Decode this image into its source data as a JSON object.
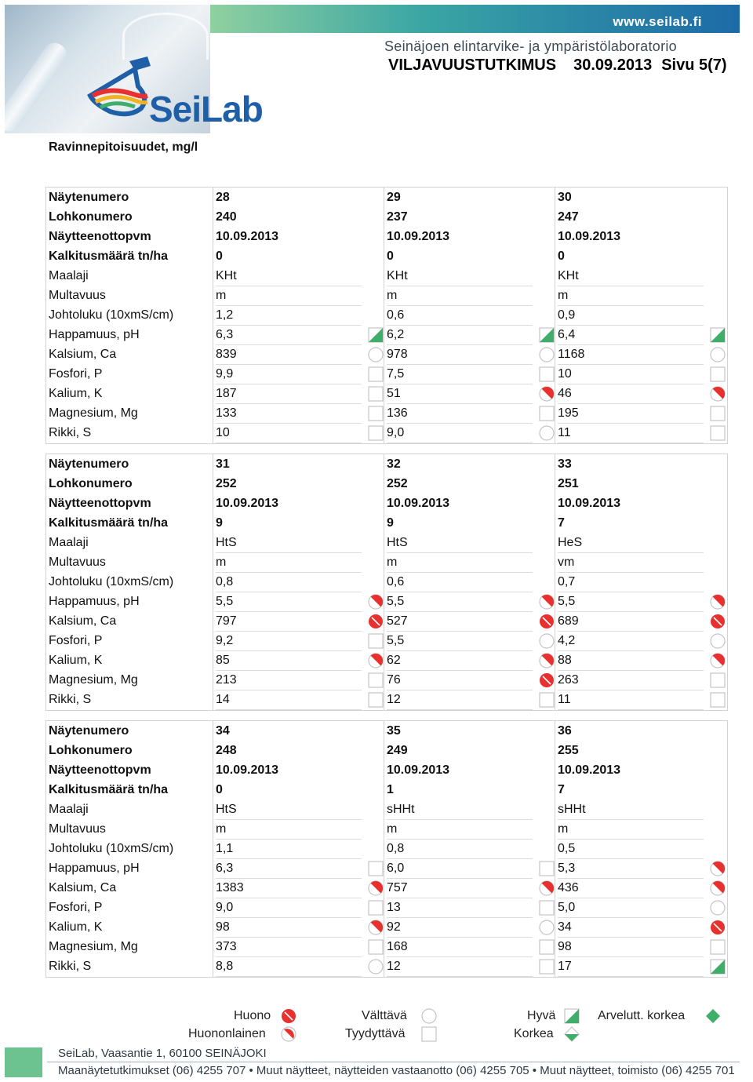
{
  "header": {
    "url": "www.seilab.fi",
    "lab_name": "Seinäjoen elintarvike- ja ympäristölaboratorio",
    "title": "VILJAVUUSTUTKIMUS",
    "date": "30.09.2013",
    "page": "Sivu 5(7)",
    "logo_text": "SeiLab"
  },
  "section_title": "Ravinnepitoisuudet, mg/l",
  "row_labels": [
    "Näytenumero",
    "Lohkonumero",
    "Näytteenottopvm",
    "Kalkitusmäärä tn/ha",
    "Maalaji",
    "Multavuus",
    "Johtoluku (10xmS/cm)",
    "Happamuus, pH",
    "Kalsium, Ca",
    "Fosfori, P",
    "Kalium, K",
    "Magnesium, Mg",
    "Rikki, S"
  ],
  "blocks": [
    {
      "columns": [
        {
          "values": [
            "28",
            "240",
            "10.09.2013",
            "0",
            "KHt",
            "m",
            "1,2",
            "6,3",
            "839",
            "9,9",
            "187",
            "133",
            "10"
          ],
          "ratings": [
            "",
            "",
            "",
            "",
            "",
            "",
            "",
            "hyva",
            "valttava",
            "tyydyttava",
            "tyydyttava",
            "tyydyttava",
            "tyydyttava"
          ]
        },
        {
          "values": [
            "29",
            "237",
            "10.09.2013",
            "0",
            "KHt",
            "m",
            "0,6",
            "6,2",
            "978",
            "7,5",
            "51",
            "136",
            "9,0"
          ],
          "ratings": [
            "",
            "",
            "",
            "",
            "",
            "",
            "",
            "hyva",
            "valttava",
            "tyydyttava",
            "huononlainen",
            "tyydyttava",
            "valttava"
          ]
        },
        {
          "values": [
            "30",
            "247",
            "10.09.2013",
            "0",
            "KHt",
            "m",
            "0,9",
            "6,4",
            "1168",
            "10",
            "46",
            "195",
            "11"
          ],
          "ratings": [
            "",
            "",
            "",
            "",
            "",
            "",
            "",
            "hyva",
            "valttava",
            "tyydyttava",
            "huononlainen",
            "tyydyttava",
            "tyydyttava"
          ]
        }
      ]
    },
    {
      "columns": [
        {
          "values": [
            "31",
            "252",
            "10.09.2013",
            "9",
            "HtS",
            "m",
            "0,8",
            "5,5",
            "797",
            "9,2",
            "85",
            "213",
            "14"
          ],
          "ratings": [
            "",
            "",
            "",
            "",
            "",
            "",
            "",
            "huononlainen",
            "huono",
            "tyydyttava",
            "huononlainen",
            "tyydyttava",
            "tyydyttava"
          ]
        },
        {
          "values": [
            "32",
            "252",
            "10.09.2013",
            "9",
            "HtS",
            "m",
            "0,6",
            "5,5",
            "527",
            "5,5",
            "62",
            "76",
            "12"
          ],
          "ratings": [
            "",
            "",
            "",
            "",
            "",
            "",
            "",
            "huononlainen",
            "huono",
            "valttava",
            "huononlainen",
            "huono",
            "tyydyttava"
          ]
        },
        {
          "values": [
            "33",
            "251",
            "10.09.2013",
            "7",
            "HeS",
            "vm",
            "0,7",
            "5,5",
            "689",
            "4,2",
            "88",
            "263",
            "11"
          ],
          "ratings": [
            "",
            "",
            "",
            "",
            "",
            "",
            "",
            "huononlainen",
            "huono",
            "valttava",
            "huononlainen",
            "tyydyttava",
            "tyydyttava"
          ]
        }
      ]
    },
    {
      "columns": [
        {
          "values": [
            "34",
            "248",
            "10.09.2013",
            "0",
            "HtS",
            "m",
            "1,1",
            "6,3",
            "1383",
            "9,0",
            "98",
            "373",
            "8,8"
          ],
          "ratings": [
            "",
            "",
            "",
            "",
            "",
            "",
            "",
            "tyydyttava",
            "huononlainen",
            "tyydyttava",
            "huononlainen",
            "tyydyttava",
            "valttava"
          ]
        },
        {
          "values": [
            "35",
            "249",
            "10.09.2013",
            "1",
            "sHHt",
            "m",
            "0,8",
            "6,0",
            "757",
            "13",
            "92",
            "168",
            "12"
          ],
          "ratings": [
            "",
            "",
            "",
            "",
            "",
            "",
            "",
            "tyydyttava",
            "huononlainen",
            "tyydyttava",
            "valttava",
            "tyydyttava",
            "tyydyttava"
          ]
        },
        {
          "values": [
            "36",
            "255",
            "10.09.2013",
            "7",
            "sHHt",
            "m",
            "0,5",
            "5,3",
            "436",
            "5,0",
            "34",
            "98",
            "17"
          ],
          "ratings": [
            "",
            "",
            "",
            "",
            "",
            "",
            "",
            "huononlainen",
            "huononlainen",
            "valttava",
            "huono",
            "tyydyttava",
            "hyva"
          ]
        }
      ]
    }
  ],
  "legend": {
    "huono": "Huono",
    "huononlainen": "Huononlainen",
    "valttava": "Välttävä",
    "tyydyttava": "Tyydyttävä",
    "hyva": "Hyvä",
    "korkea": "Korkea",
    "arvelutt_korkea": "Arvelutt. korkea"
  },
  "footer": {
    "address": "SeiLab, Vaasantie 1, 60100 SEINÄJOKI",
    "contacts": "Maanäytetutkimukset (06) 4255 707 • Muut näytteet, näytteiden vastaanotto (06) 4255 705 • Muut näytteet, toimisto (06) 4255 701"
  },
  "colors": {
    "huono": "#e8302f",
    "good_green": "#3fae6a",
    "outline": "#b8b8b8"
  }
}
